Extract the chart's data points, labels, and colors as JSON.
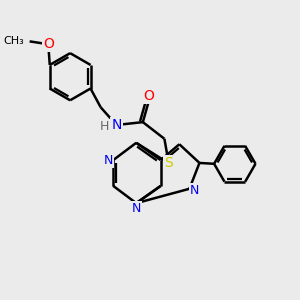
{
  "bg_color": "#ebebeb",
  "bond_color": "#000000",
  "bond_width": 1.8,
  "atom_colors": {
    "N": "#0000ee",
    "O": "#ff0000",
    "S": "#cccc00",
    "H": "#666666",
    "C": "#000000"
  },
  "font_size": 9,
  "fig_size": [
    3.0,
    3.0
  ],
  "dpi": 100
}
